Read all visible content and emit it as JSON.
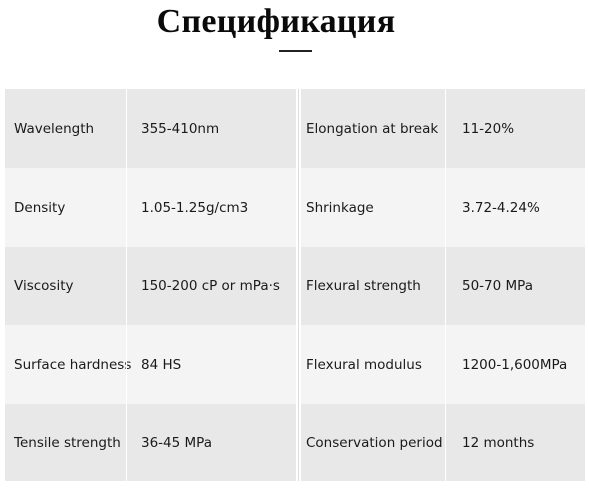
{
  "title": "Спецификация",
  "table": {
    "rows": [
      {
        "label1": "Wavelength",
        "value1": "355-410nm",
        "label2": "Elongation at break",
        "value2": "11-20%"
      },
      {
        "label1": "Density",
        "value1": "1.05-1.25g/cm3",
        "label2": "Shrinkage",
        "value2": "3.72-4.24%"
      },
      {
        "label1": "Viscosity",
        "value1": "150-200 cP or mPa·s",
        "label2": "Flexural strength",
        "value2": "50-70 MPa"
      },
      {
        "label1": "Surface hardness",
        "value1": "84 HS",
        "label2": "Flexural modulus",
        "value2": "1200-1,600MPa"
      },
      {
        "label1": "Tensile strength",
        "value1": "36-45 MPa",
        "label2": "Conservation period",
        "value2": "12 months"
      }
    ]
  }
}
